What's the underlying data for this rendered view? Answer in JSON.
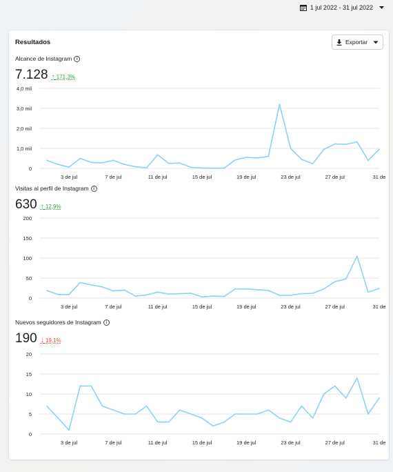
{
  "date_range": "1 jul 2022 - 31 jul 2022",
  "card": {
    "title": "Resultados",
    "export_label": "Exportar"
  },
  "metrics": [
    {
      "label": "Alcance de Instagram",
      "value": "7.128",
      "change": "171,3%",
      "direction": "up"
    },
    {
      "label": "Visitas al perfil de Instagram",
      "value": "630",
      "change": "12,9%",
      "direction": "up"
    },
    {
      "label": "Nuevos seguidores de Instagram",
      "value": "190",
      "change": "19,1%",
      "direction": "down"
    }
  ],
  "colors": {
    "line": "#8dd3f0",
    "grid": "#e4e6eb",
    "up": "#31a24c",
    "down": "#e4493c"
  },
  "chart_data": [
    {
      "type": "line",
      "x": [
        1,
        2,
        3,
        4,
        5,
        6,
        7,
        8,
        9,
        10,
        11,
        12,
        13,
        14,
        15,
        16,
        17,
        18,
        19,
        20,
        21,
        22,
        23,
        24,
        25,
        26,
        27,
        28,
        29,
        30,
        31
      ],
      "x_tick_labels": [
        "3 de jul",
        "7 de jul",
        "11 de jul",
        "15 de jul",
        "19 de jul",
        "23 de jul",
        "27 de jul",
        "31 de"
      ],
      "x_ticks": [
        3,
        7,
        11,
        15,
        19,
        23,
        27,
        31
      ],
      "y_tick_labels": [
        "0",
        "1,0 mil",
        "2,0 mil",
        "3,0 mil",
        "4,0 mil"
      ],
      "ylim": [
        0,
        4000
      ],
      "grid": true,
      "series": [
        {
          "values": [
            400,
            200,
            60,
            500,
            300,
            280,
            400,
            200,
            80,
            30,
            680,
            250,
            270,
            50,
            20,
            10,
            10,
            420,
            550,
            520,
            600,
            3200,
            1000,
            450,
            230,
            950,
            1220,
            1200,
            1320,
            400,
            950
          ]
        }
      ]
    },
    {
      "type": "line",
      "x": [
        1,
        2,
        3,
        4,
        5,
        6,
        7,
        8,
        9,
        10,
        11,
        12,
        13,
        14,
        15,
        16,
        17,
        18,
        19,
        20,
        21,
        22,
        23,
        24,
        25,
        26,
        27,
        28,
        29,
        30,
        31
      ],
      "x_tick_labels": [
        "3 de jul",
        "7 de jul",
        "11 de jul",
        "15 de jul",
        "19 de jul",
        "23 de jul",
        "27 de jul",
        "31 de"
      ],
      "x_ticks": [
        3,
        7,
        11,
        15,
        19,
        23,
        27,
        31
      ],
      "y_tick_labels": [
        "0",
        "50",
        "100",
        "150",
        "200"
      ],
      "ylim": [
        0,
        200
      ],
      "grid": true,
      "series": [
        {
          "values": [
            19,
            9,
            9,
            39,
            33,
            28,
            18,
            20,
            5,
            8,
            15,
            10,
            11,
            12,
            3,
            5,
            4,
            23,
            23,
            21,
            19,
            7,
            7,
            11,
            12,
            23,
            41,
            48,
            105,
            15,
            24
          ]
        }
      ]
    },
    {
      "type": "line",
      "x": [
        1,
        2,
        3,
        4,
        5,
        6,
        7,
        8,
        9,
        10,
        11,
        12,
        13,
        14,
        15,
        16,
        17,
        18,
        19,
        20,
        21,
        22,
        23,
        24,
        25,
        26,
        27,
        28,
        29,
        30,
        31
      ],
      "x_tick_labels": [
        "3 de jul",
        "7 de jul",
        "11 de jul",
        "15 de jul",
        "19 de jul",
        "23 de jul",
        "27 de jul",
        "31 de"
      ],
      "x_ticks": [
        3,
        7,
        11,
        15,
        19,
        23,
        27,
        31
      ],
      "y_tick_labels": [
        "0",
        "5",
        "10",
        "15",
        "20"
      ],
      "ylim": [
        0,
        20
      ],
      "grid": true,
      "series": [
        {
          "values": [
            7,
            4,
            1,
            12,
            12,
            7,
            6,
            5,
            5,
            7,
            3,
            3,
            6,
            5,
            4,
            2,
            3,
            5,
            5,
            5,
            6,
            4,
            3,
            7,
            4,
            10,
            12,
            9,
            14,
            5,
            9
          ]
        }
      ]
    }
  ]
}
